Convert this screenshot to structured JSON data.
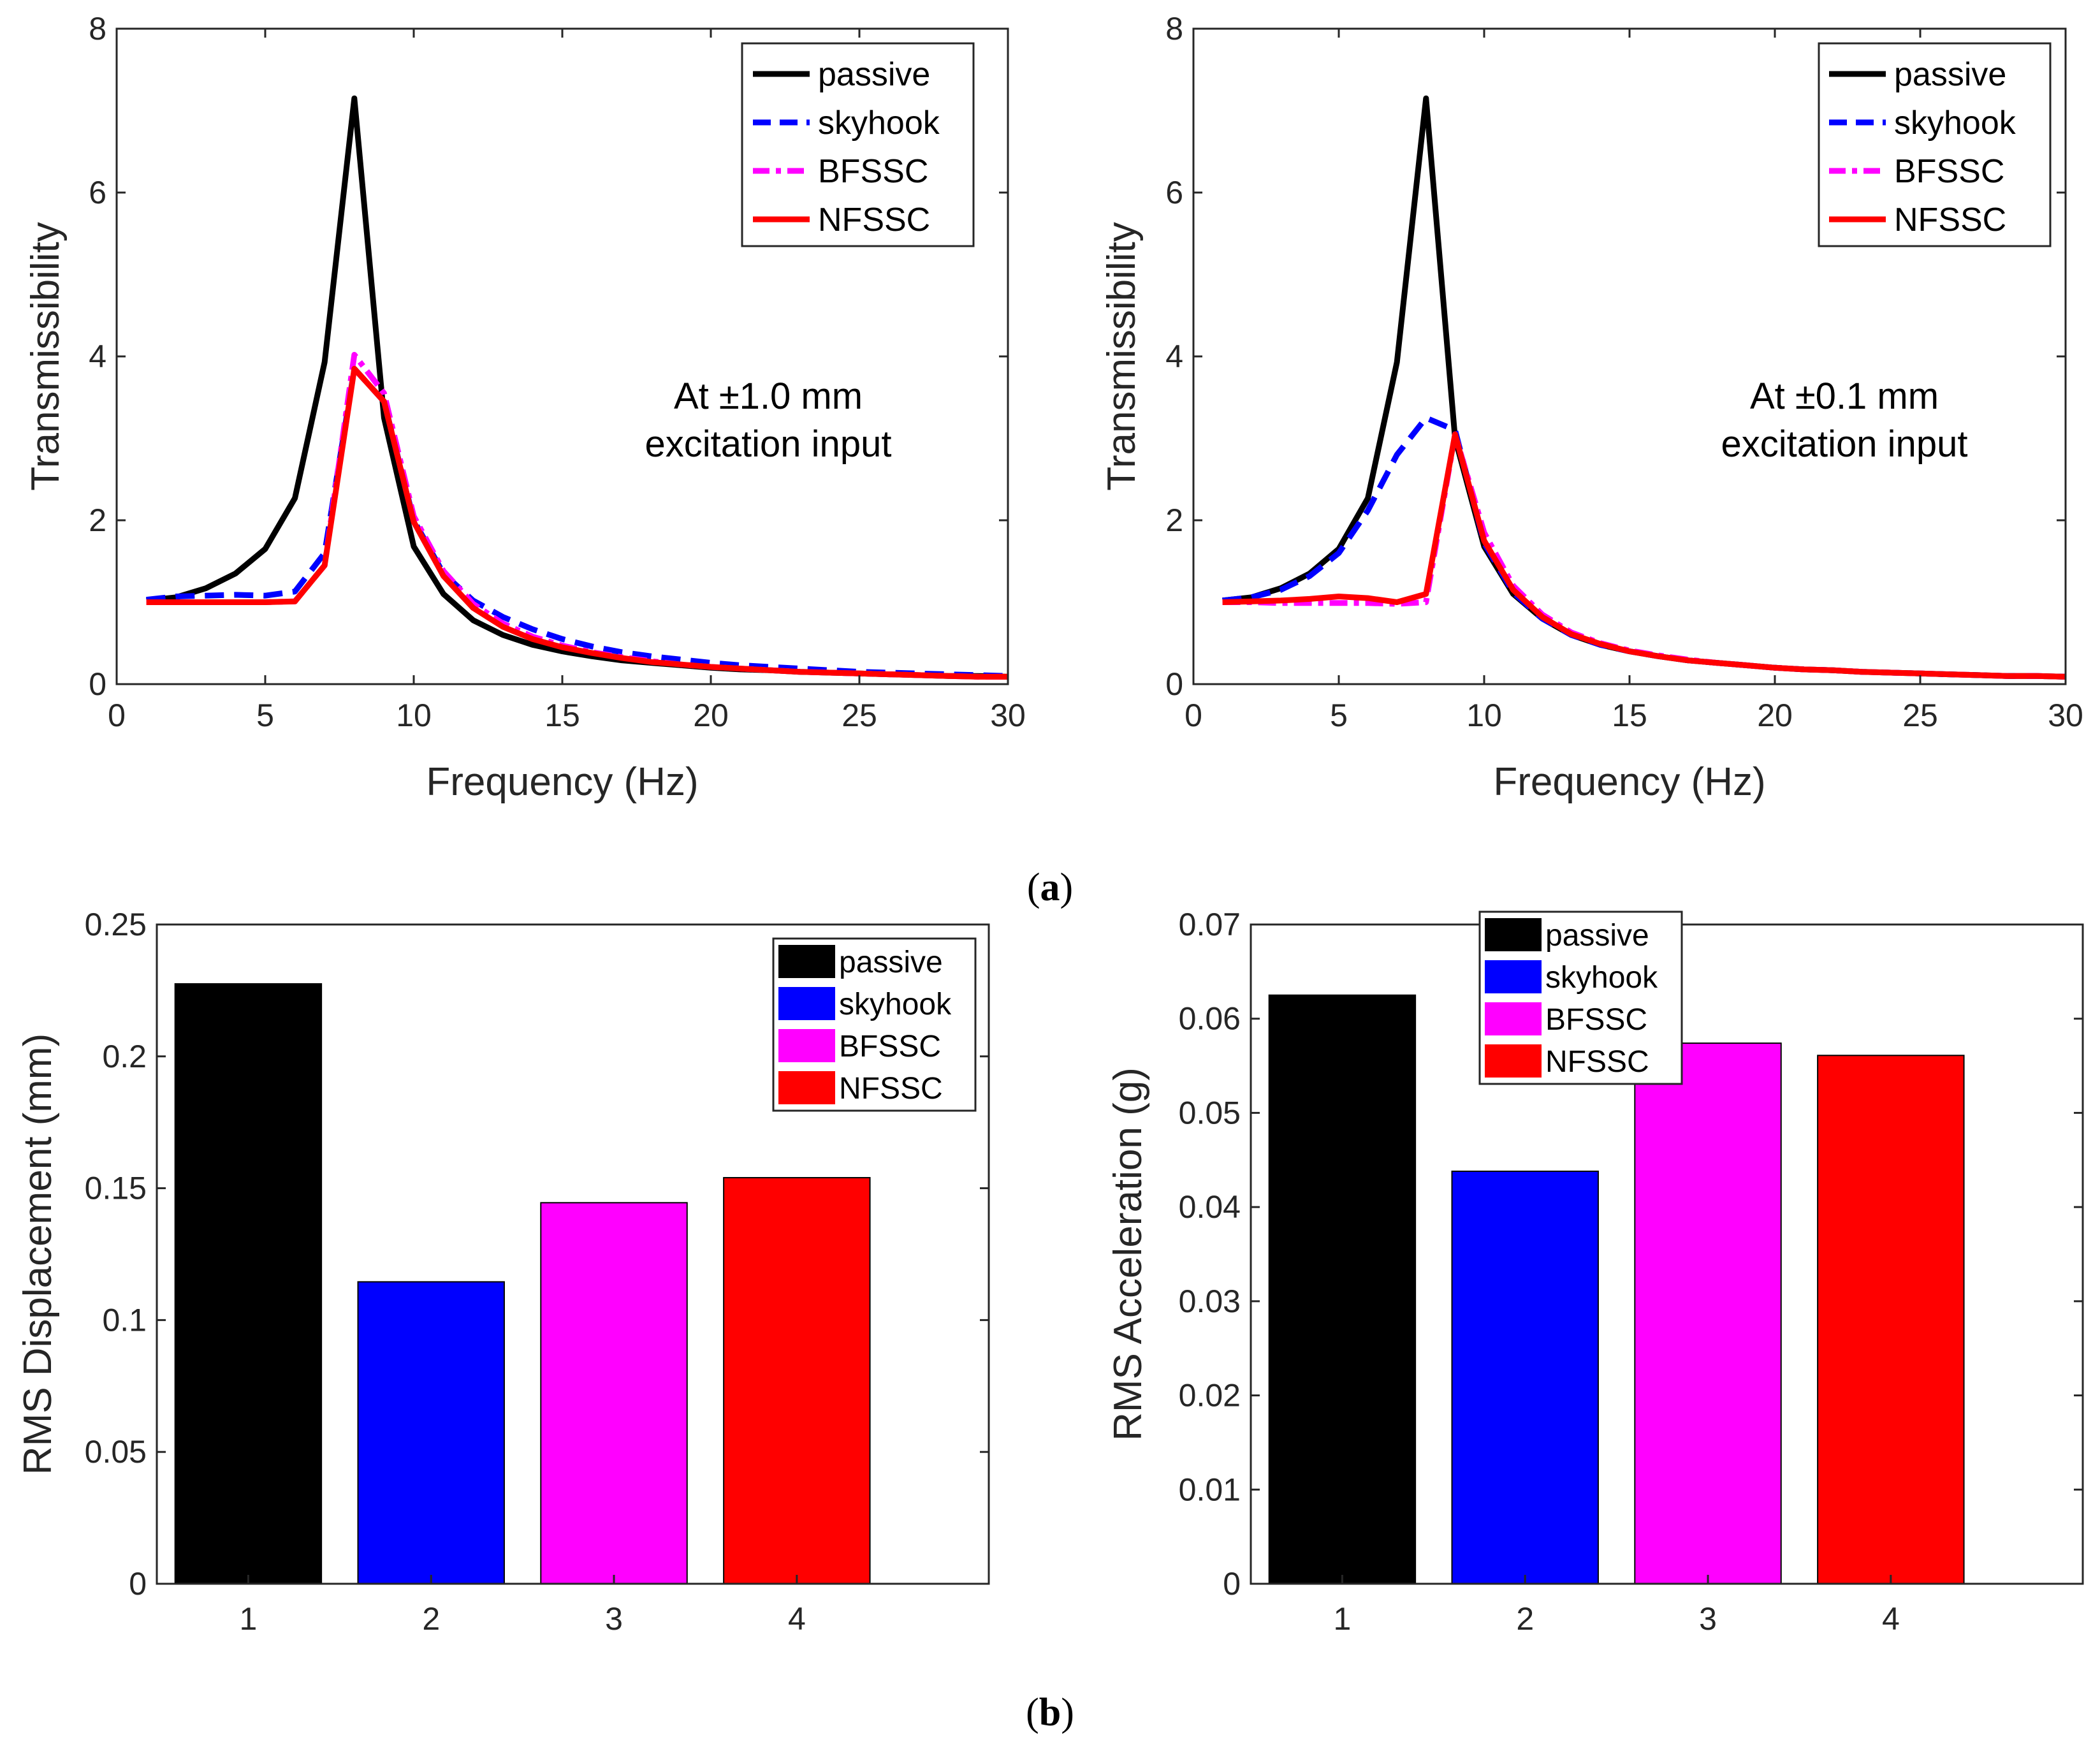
{
  "captions": {
    "a_open": "(",
    "a_letter": "a",
    "a_close": ")",
    "b_open": "(",
    "b_letter": "b",
    "b_close": ")"
  },
  "colors": {
    "passive": "#000000",
    "skyhook": "#0000ff",
    "bfssc": "#ff00ff",
    "nfssc": "#ff0000",
    "axis": "#262626"
  },
  "chart_data": [
    {
      "id": "tl",
      "type": "line",
      "title": "",
      "xlabel": "Frequency (Hz)",
      "ylabel": "Transmissibility",
      "xlim": [
        0,
        30
      ],
      "ylim": [
        0,
        8
      ],
      "xticks": [
        "0",
        "5",
        "10",
        "15",
        "20",
        "25",
        "30"
      ],
      "yticks": [
        "0",
        "2",
        "4",
        "6",
        "8"
      ],
      "annotation": [
        "At ±1.0 mm",
        "excitation input"
      ],
      "legend": [
        "passive",
        "skyhook",
        "BFSSC",
        "NFSSC"
      ],
      "legend_position": "top-right",
      "x": [
        1,
        2,
        3,
        4,
        5,
        6,
        7,
        8,
        9,
        10,
        11,
        12,
        13,
        14,
        15,
        16,
        17,
        18,
        19,
        20,
        21,
        22,
        23,
        24,
        25,
        26,
        27,
        28,
        29,
        30
      ],
      "series": [
        {
          "name": "passive",
          "color": "#000000",
          "style": "solid",
          "values": [
            1.02,
            1.06,
            1.17,
            1.35,
            1.65,
            2.27,
            3.93,
            7.15,
            3.25,
            1.68,
            1.1,
            0.78,
            0.6,
            0.48,
            0.4,
            0.34,
            0.29,
            0.26,
            0.23,
            0.2,
            0.18,
            0.17,
            0.15,
            0.14,
            0.13,
            0.12,
            0.11,
            0.1,
            0.1,
            0.09
          ]
        },
        {
          "name": "skyhook",
          "color": "#0000ff",
          "style": "dashed",
          "values": [
            1.03,
            1.07,
            1.08,
            1.09,
            1.08,
            1.13,
            1.6,
            3.85,
            3.45,
            2.0,
            1.35,
            1.02,
            0.82,
            0.67,
            0.55,
            0.46,
            0.39,
            0.34,
            0.3,
            0.26,
            0.23,
            0.21,
            0.19,
            0.17,
            0.15,
            0.14,
            0.13,
            0.12,
            0.11,
            0.1
          ]
        },
        {
          "name": "BFSSC",
          "color": "#ff00ff",
          "style": "dashdot",
          "values": [
            1.0,
            1.0,
            1.0,
            1.0,
            1.0,
            1.01,
            1.45,
            4.02,
            3.55,
            2.05,
            1.38,
            0.98,
            0.74,
            0.58,
            0.47,
            0.39,
            0.33,
            0.28,
            0.24,
            0.21,
            0.19,
            0.17,
            0.15,
            0.14,
            0.13,
            0.12,
            0.11,
            0.1,
            0.09,
            0.09
          ]
        },
        {
          "name": "NFSSC",
          "color": "#ff0000",
          "style": "solid",
          "values": [
            1.0,
            1.0,
            1.0,
            1.0,
            1.0,
            1.01,
            1.45,
            3.85,
            3.45,
            1.98,
            1.32,
            0.93,
            0.7,
            0.55,
            0.45,
            0.38,
            0.32,
            0.27,
            0.24,
            0.21,
            0.19,
            0.17,
            0.15,
            0.14,
            0.13,
            0.12,
            0.11,
            0.1,
            0.09,
            0.09
          ]
        }
      ]
    },
    {
      "id": "tr",
      "type": "line",
      "title": "",
      "xlabel": "Frequency (Hz)",
      "ylabel": "Transmissibility",
      "xlim": [
        0,
        30
      ],
      "ylim": [
        0,
        8
      ],
      "xticks": [
        "0",
        "5",
        "10",
        "15",
        "20",
        "25",
        "30"
      ],
      "yticks": [
        "0",
        "2",
        "4",
        "6",
        "8"
      ],
      "annotation": [
        "At ±0.1 mm",
        "excitation input"
      ],
      "legend": [
        "passive",
        "skyhook",
        "BFSSC",
        "NFSSC"
      ],
      "legend_position": "top-right",
      "x": [
        1,
        2,
        3,
        4,
        5,
        6,
        7,
        8,
        9,
        10,
        11,
        12,
        13,
        14,
        15,
        16,
        17,
        18,
        19,
        20,
        21,
        22,
        23,
        24,
        25,
        26,
        27,
        28,
        29,
        30
      ],
      "series": [
        {
          "name": "passive",
          "color": "#000000",
          "style": "solid",
          "values": [
            1.02,
            1.06,
            1.17,
            1.35,
            1.65,
            2.27,
            3.93,
            7.15,
            3.0,
            1.68,
            1.1,
            0.8,
            0.6,
            0.48,
            0.4,
            0.34,
            0.29,
            0.26,
            0.23,
            0.2,
            0.18,
            0.17,
            0.15,
            0.14,
            0.13,
            0.12,
            0.11,
            0.1,
            0.1,
            0.09
          ]
        },
        {
          "name": "skyhook",
          "color": "#0000ff",
          "style": "dashed",
          "values": [
            1.02,
            1.06,
            1.15,
            1.32,
            1.6,
            2.12,
            2.8,
            3.25,
            3.1,
            1.72,
            1.12,
            0.8,
            0.6,
            0.48,
            0.4,
            0.34,
            0.29,
            0.26,
            0.23,
            0.2,
            0.18,
            0.17,
            0.15,
            0.14,
            0.13,
            0.12,
            0.11,
            0.1,
            0.1,
            0.09
          ]
        },
        {
          "name": "BFSSC",
          "color": "#ff00ff",
          "style": "dashdot",
          "values": [
            1.0,
            1.0,
            0.99,
            0.99,
            0.99,
            0.99,
            0.98,
            1.0,
            3.05,
            1.85,
            1.2,
            0.85,
            0.63,
            0.5,
            0.41,
            0.35,
            0.3,
            0.26,
            0.23,
            0.2,
            0.18,
            0.17,
            0.15,
            0.14,
            0.13,
            0.12,
            0.11,
            0.1,
            0.1,
            0.09
          ]
        },
        {
          "name": "NFSSC",
          "color": "#ff0000",
          "style": "solid",
          "values": [
            1.0,
            1.01,
            1.02,
            1.04,
            1.07,
            1.05,
            1.0,
            1.1,
            3.05,
            1.75,
            1.15,
            0.82,
            0.61,
            0.49,
            0.4,
            0.34,
            0.29,
            0.26,
            0.23,
            0.2,
            0.18,
            0.17,
            0.15,
            0.14,
            0.13,
            0.12,
            0.11,
            0.1,
            0.1,
            0.09
          ]
        }
      ]
    },
    {
      "id": "bl",
      "type": "bar",
      "title": "",
      "xlabel": "",
      "ylabel": "RMS Displacement (mm)",
      "ylim": [
        0,
        0.25
      ],
      "categories": [
        "1",
        "2",
        "3",
        "4"
      ],
      "yticks": [
        "0",
        "0.05",
        "0.1",
        "0.15",
        "0.2",
        "0.25"
      ],
      "legend": [
        "passive",
        "skyhook",
        "BFSSC",
        "NFSSC"
      ],
      "legend_position": "top-right",
      "values": [
        0.2275,
        0.1145,
        0.1445,
        0.154
      ],
      "colors": [
        "#000000",
        "#0000ff",
        "#ff00ff",
        "#ff0000"
      ]
    },
    {
      "id": "br",
      "type": "bar",
      "title": "",
      "xlabel": "",
      "ylabel": "RMS Acceleration (g)",
      "ylim": [
        0,
        0.07
      ],
      "categories": [
        "1",
        "2",
        "3",
        "4"
      ],
      "yticks": [
        "0",
        "0.01",
        "0.02",
        "0.03",
        "0.04",
        "0.05",
        "0.06",
        "0.07"
      ],
      "legend": [
        "passive",
        "skyhook",
        "BFSSC",
        "NFSSC"
      ],
      "legend_position": "top-left",
      "values": [
        0.0625,
        0.0438,
        0.0574,
        0.0561
      ],
      "colors": [
        "#000000",
        "#0000ff",
        "#ff00ff",
        "#ff0000"
      ]
    }
  ]
}
